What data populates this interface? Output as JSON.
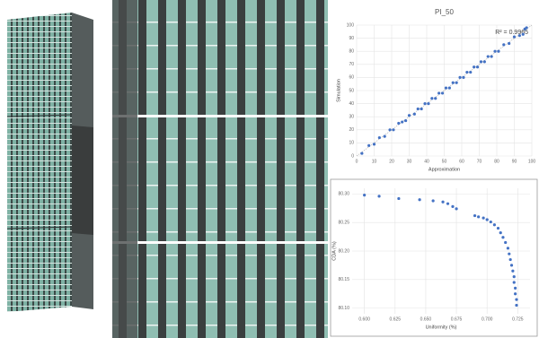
{
  "chart_data": [
    {
      "type": "scatter",
      "title": "PI_50",
      "annotation": "R² = 0.9965",
      "x_label": "Approximation",
      "y_label": "Simulation",
      "color": "#4472c4",
      "xlim": [
        0,
        100
      ],
      "ylim": [
        0,
        100
      ],
      "xticks": [
        0,
        10,
        20,
        30,
        40,
        50,
        60,
        70,
        80,
        90,
        100
      ],
      "yticks": [
        0,
        10,
        20,
        30,
        40,
        50,
        60,
        70,
        80,
        90,
        100
      ],
      "x": [
        3,
        7,
        10,
        13,
        16,
        19,
        21,
        24,
        26,
        28,
        30,
        33,
        35,
        37,
        39,
        41,
        43,
        45,
        47,
        49,
        51,
        53,
        55,
        57,
        59,
        61,
        63,
        65,
        67,
        69,
        71,
        73,
        75,
        77,
        79,
        81,
        84,
        87,
        90,
        93,
        95,
        96,
        97
      ],
      "y": [
        2,
        8,
        9,
        14,
        15,
        20,
        20,
        25,
        26,
        27,
        31,
        32,
        36,
        36,
        40,
        40,
        44,
        44,
        48,
        48,
        52,
        52,
        56,
        56,
        60,
        60,
        64,
        64,
        68,
        68,
        72,
        72,
        76,
        76,
        80,
        80,
        85,
        86,
        91,
        92,
        93,
        97,
        98
      ]
    },
    {
      "type": "scatter",
      "x_label": "Uniformity (%)",
      "y_label": "CDA (%)",
      "color": "#4472c4",
      "xlim": [
        0.59,
        0.735
      ],
      "ylim": [
        80.09,
        80.31
      ],
      "xticks": [
        {
          "value": 0.6,
          "label": "0.600"
        },
        {
          "value": 0.625,
          "label": "0.625"
        },
        {
          "value": 0.65,
          "label": "0.650"
        },
        {
          "value": 0.675,
          "label": "0.675"
        },
        {
          "value": 0.7,
          "label": "0.700"
        },
        {
          "value": 0.725,
          "label": "0.725"
        }
      ],
      "yticks": [
        {
          "value": 80.1,
          "label": "80.10"
        },
        {
          "value": 80.15,
          "label": "80.15"
        },
        {
          "value": 80.2,
          "label": "80.20"
        },
        {
          "value": 80.25,
          "label": "80.25"
        },
        {
          "value": 80.3,
          "label": "80.30"
        }
      ],
      "x": [
        0.6,
        0.612,
        0.628,
        0.645,
        0.656,
        0.664,
        0.668,
        0.672,
        0.675,
        0.69,
        0.693,
        0.697,
        0.7,
        0.703,
        0.706,
        0.709,
        0.711,
        0.713,
        0.715,
        0.717,
        0.718,
        0.719,
        0.72,
        0.721,
        0.722,
        0.722,
        0.723,
        0.723,
        0.724,
        0.724
      ],
      "y": [
        80.298,
        80.296,
        80.292,
        80.29,
        80.288,
        80.286,
        80.283,
        80.278,
        80.274,
        80.262,
        80.26,
        80.258,
        80.255,
        80.251,
        80.246,
        80.24,
        80.232,
        80.224,
        80.215,
        80.205,
        80.195,
        80.185,
        80.175,
        80.165,
        80.155,
        80.145,
        80.135,
        80.125,
        80.115,
        80.105
      ]
    }
  ]
}
